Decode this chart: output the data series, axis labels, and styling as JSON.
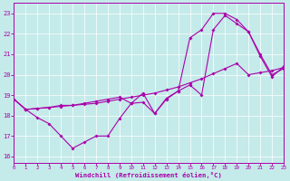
{
  "xlabel": "Windchill (Refroidissement éolien,°C)",
  "x_ticks": [
    0,
    1,
    2,
    3,
    4,
    5,
    6,
    7,
    8,
    9,
    10,
    11,
    12,
    13,
    14,
    15,
    16,
    17,
    18,
    19,
    20,
    21,
    22,
    23
  ],
  "y_ticks": [
    16,
    17,
    18,
    19,
    20,
    21,
    22,
    23
  ],
  "xlim": [
    0,
    23
  ],
  "ylim": [
    15.7,
    23.5
  ],
  "bg_color": "#c5eaea",
  "line_color": "#aa00aa",
  "line1_y": [
    18.8,
    18.3,
    17.9,
    17.6,
    17.0,
    16.4,
    16.7,
    17.0,
    17.0,
    17.85,
    18.6,
    19.1,
    18.1,
    18.8,
    19.2,
    19.5,
    19.0,
    22.2,
    22.9,
    22.5,
    22.1,
    20.9,
    19.9,
    20.4
  ],
  "line2_y": [
    18.8,
    18.3,
    18.35,
    18.4,
    18.45,
    18.5,
    18.55,
    18.6,
    18.7,
    18.8,
    18.9,
    19.0,
    19.1,
    19.25,
    19.4,
    19.6,
    19.8,
    20.05,
    20.3,
    20.55,
    20.0,
    20.1,
    20.2,
    20.35
  ],
  "line3_y": [
    18.8,
    18.3,
    18.35,
    18.4,
    18.5,
    18.5,
    18.6,
    18.7,
    18.8,
    18.9,
    18.6,
    18.65,
    18.1,
    18.85,
    19.2,
    21.8,
    22.2,
    23.0,
    23.0,
    22.7,
    22.1,
    21.0,
    20.0,
    20.3
  ]
}
